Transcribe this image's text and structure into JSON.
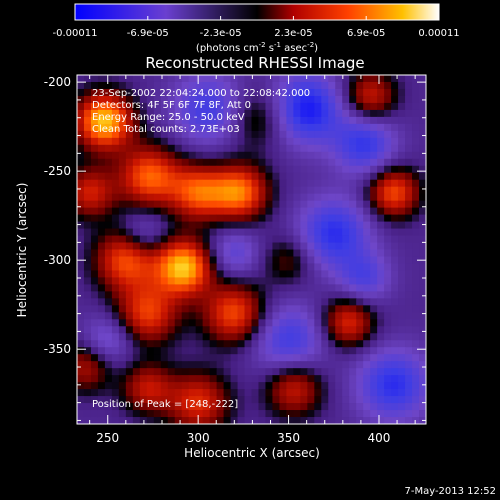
{
  "chart_data": {
    "type": "heatmap",
    "title": "Reconstructed RHESSI Image",
    "xlabel": "Heliocentric X (arcsec)",
    "ylabel": "Heliocentric Y (arcsec)",
    "xlim": [
      233,
      426
    ],
    "ylim": [
      -392,
      -196
    ],
    "xticks": [
      250,
      300,
      350,
      400
    ],
    "yticks": [
      -200,
      -250,
      -300,
      -350
    ],
    "colorbar": {
      "ticks": [
        "-0.00011",
        "-6.9e-05",
        "-2.3e-05",
        "2.3e-05",
        "6.9e-05",
        "0.00011"
      ],
      "unit_text": "(photons cm",
      "unit_sup1": "-2",
      "unit_mid1": " s",
      "unit_sup2": "-1",
      "unit_mid2": " asec",
      "unit_sup3": "-2",
      "unit_end": ")",
      "range": [
        -0.00011,
        0.00011
      ]
    },
    "annotations": {
      "time": "23-Sep-2002 22:04:24.000 to 22:08:42.000",
      "detectors": "Detectors: 4F 5F 6F 7F 8F, Att 0",
      "energy": "Energy Range: 25.0 - 50.0 keV",
      "counts": "Clean   Total counts: 2.73E+03",
      "peak": "Position of Peak = [248,-222]"
    },
    "intensity_sources": [
      {
        "x": 248,
        "y": -222,
        "value": 1.0,
        "width": 11
      },
      {
        "x": 292,
        "y": -304,
        "value": 1.0,
        "width": 11
      },
      {
        "x": 273,
        "y": -253,
        "value": 0.75,
        "width": 12
      },
      {
        "x": 260,
        "y": -300,
        "value": 0.7,
        "width": 12
      },
      {
        "x": 300,
        "y": -262,
        "value": 0.7,
        "width": 11
      },
      {
        "x": 272,
        "y": -330,
        "value": 0.65,
        "width": 12
      },
      {
        "x": 323,
        "y": -262,
        "value": 0.8,
        "width": 11
      },
      {
        "x": 320,
        "y": -330,
        "value": 0.7,
        "width": 12
      },
      {
        "x": 408,
        "y": -262,
        "value": 0.7,
        "width": 10
      },
      {
        "x": 395,
        "y": -208,
        "value": 0.55,
        "width": 10
      },
      {
        "x": 383,
        "y": -335,
        "value": 0.6,
        "width": 10
      },
      {
        "x": 353,
        "y": -372,
        "value": 0.55,
        "width": 11
      },
      {
        "x": 300,
        "y": -380,
        "value": 0.6,
        "width": 12
      },
      {
        "x": 272,
        "y": -372,
        "value": 0.5,
        "width": 10
      },
      {
        "x": 238,
        "y": -360,
        "value": 0.45,
        "width": 10
      },
      {
        "x": 333,
        "y": -220,
        "value": 0.35,
        "width": 12
      },
      {
        "x": 240,
        "y": -262,
        "value": 0.55,
        "width": 10
      },
      {
        "x": 350,
        "y": -300,
        "value": 0.3,
        "width": 10
      },
      {
        "x": 306,
        "y": -215,
        "value": -0.5,
        "width": 14
      },
      {
        "x": 360,
        "y": -215,
        "value": -0.7,
        "width": 14
      },
      {
        "x": 392,
        "y": -235,
        "value": -0.55,
        "width": 12
      },
      {
        "x": 375,
        "y": -285,
        "value": -0.6,
        "width": 14
      },
      {
        "x": 270,
        "y": -285,
        "value": -0.3,
        "width": 9
      },
      {
        "x": 350,
        "y": -345,
        "value": -0.5,
        "width": 14
      },
      {
        "x": 408,
        "y": -370,
        "value": -0.6,
        "width": 14
      },
      {
        "x": 250,
        "y": -345,
        "value": -0.35,
        "width": 10
      },
      {
        "x": 320,
        "y": -296,
        "value": -0.35,
        "width": 10
      },
      {
        "x": 392,
        "y": -310,
        "value": -0.4,
        "width": 10
      }
    ]
  },
  "footer": {
    "timestamp": "7-May-2013 12:52"
  },
  "colors": {
    "background": "#000000",
    "text": "#ffffff"
  }
}
